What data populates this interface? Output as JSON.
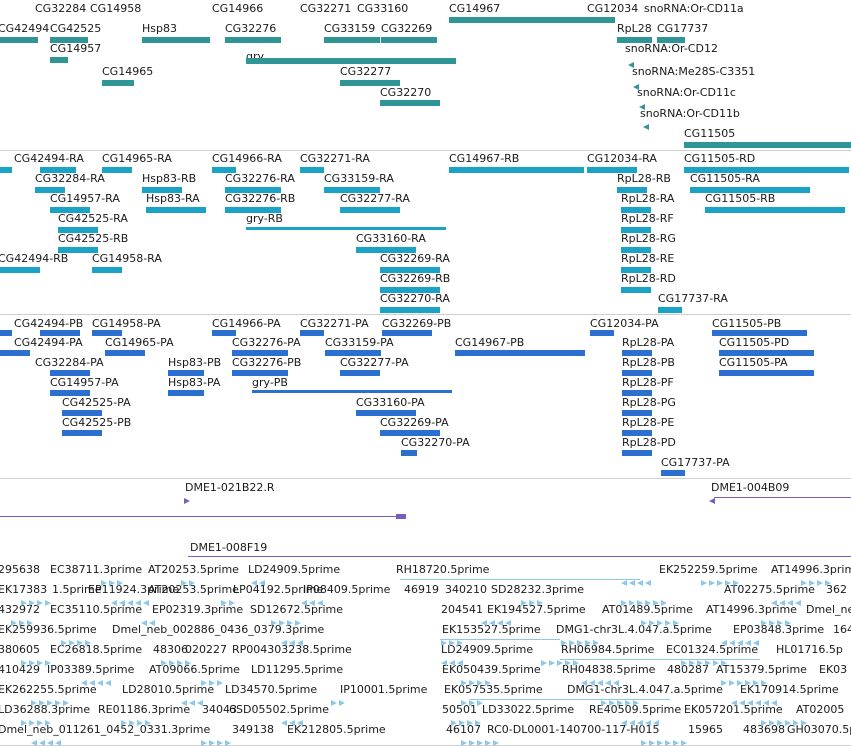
{
  "genes": {
    "color": "#2f9597",
    "labels": [
      "CG32284",
      "CG14958",
      "CG14966",
      "CG32271",
      "CG33160",
      "CG14967",
      "CG12034",
      "snoRNA:Or-CD11a",
      "CG42494",
      "CG42525",
      "Hsp83",
      "CG32276",
      "CG33159",
      "CG32269",
      "RpL28",
      "CG17737",
      "CG14957",
      "snoRNA:Or-CD12",
      "CG14965",
      "gry",
      "CG32277",
      "snoRNA:Me28S-C3351",
      "CG32270",
      "snoRNA:Or-CD11c",
      "snoRNA:Or-CD11b",
      "CG11505"
    ]
  },
  "transcripts": {
    "color": "#1aa3c6",
    "labels": [
      "CG42494-RA",
      "CG14965-RA",
      "CG14966-RA",
      "CG32271-RA",
      "CG14967-RB",
      "CG12034-RA",
      "CG11505-RD",
      "CG32284-RA",
      "Hsp83-RB",
      "CG32276-RA",
      "CG33159-RA",
      "RpL28-RB",
      "CG11505-RA",
      "CG14957-RA",
      "Hsp83-RA",
      "CG32276-RB",
      "CG32277-RA",
      "RpL28-RA",
      "CG11505-RB",
      "CG42525-RA",
      "gry-RB",
      "RpL28-RF",
      "CG42525-RB",
      "CG33160-RA",
      "RpL28-RG",
      "CG42494-RB",
      "CG14958-RA",
      "CG32269-RA",
      "RpL28-RE",
      "CG32269-RB",
      "RpL28-RD",
      "CG32270-RA",
      "CG17737-RA"
    ]
  },
  "proteins": {
    "color": "#2b6fd1",
    "labels": [
      "CG42494-PB",
      "CG14958-PA",
      "CG14966-PA",
      "CG32271-PA",
      "CG32269-PB",
      "CG12034-PA",
      "CG11505-PB",
      "CG42494-PA",
      "CG14965-PA",
      "CG32276-PA",
      "CG33159-PA",
      "CG14967-PB",
      "RpL28-PA",
      "CG11505-PD",
      "CG32284-PA",
      "Hsp83-PB",
      "CG32276-PB",
      "CG32277-PA",
      "RpL28-PB",
      "CG11505-PA",
      "CG14957-PA",
      "Hsp83-PA",
      "gry-PB",
      "RpL28-PF",
      "CG42525-PA",
      "CG33160-PA",
      "RpL28-PG",
      "CG42525-PB",
      "CG32269-PA",
      "RpL28-PE",
      "CG32270-PA",
      "RpL28-PD",
      "CG17737-PA"
    ]
  },
  "clones": {
    "color": "#7a5bbf",
    "labels": [
      "DME1-021B22.R",
      "DME1-004B09",
      "DME1-008F19"
    ]
  },
  "ests": {
    "color": "#8ec8e8",
    "labels": [
      "295638",
      "EC38711.3prime",
      "AT20253.5prime",
      "LD24909.5prime",
      "RH18720.5prime",
      "EK252259.5prime",
      "AT14996.3prime",
      "EK17383",
      "1.5prime",
      "EP11924.3prime",
      "AT20253.5prime",
      "LP04192.5prime",
      "IP08409.5prime",
      "46919",
      "340210",
      "SD28232.3prime",
      "AT02275.5prime",
      "362",
      "432972",
      "EC35110.5prime",
      "EP02319.3prime",
      "SD12672.5prime",
      "204541",
      "EK194527.5prime",
      "AT01489.5prime",
      "AT14996.3prime",
      "Dmel_neb",
      "EK259936.5prime",
      "Dmel_neb_002886_0436_0379.3prime",
      "EK153527.5prime",
      "DMG1-chr3L.4.047.a.5prime",
      "EP03848.3prime",
      "164",
      "380605",
      "EC26818.5prime",
      "48306",
      "020227",
      "RP004303238.5prime",
      "LD24909.5prime",
      "RH06984.5prime",
      "EC01324.5prime",
      "HL01716.5p",
      "410429",
      "IP03389.5prime",
      "AT09066.5prime",
      "LD11295.5prime",
      "EK050439.5prime",
      "RH04838.5prime",
      "480287",
      "AT15379.5prime",
      "EK03",
      "EK262255.5prime",
      "LD28010.5prime",
      "LD34570.5prime",
      "IP10001.5prime",
      "EK057535.5prime",
      "DMG1-chr3L.4.047.a.5prime",
      "EK170914.5prime",
      "LD36288.3prime",
      "RE01186.3prime",
      "34043",
      "6SD05502.5prime",
      "50501",
      "LD33022.5prime",
      "RE40509.5prime",
      "EK057201.5prime",
      "AT02005",
      "Dmel_neb_011261_0452_0331.3prime",
      "349138",
      "EK212805.5prime",
      "46107",
      "RC0-DL0001-140700-117-H015",
      "15965",
      "483698",
      "GH03070.5p"
    ]
  }
}
